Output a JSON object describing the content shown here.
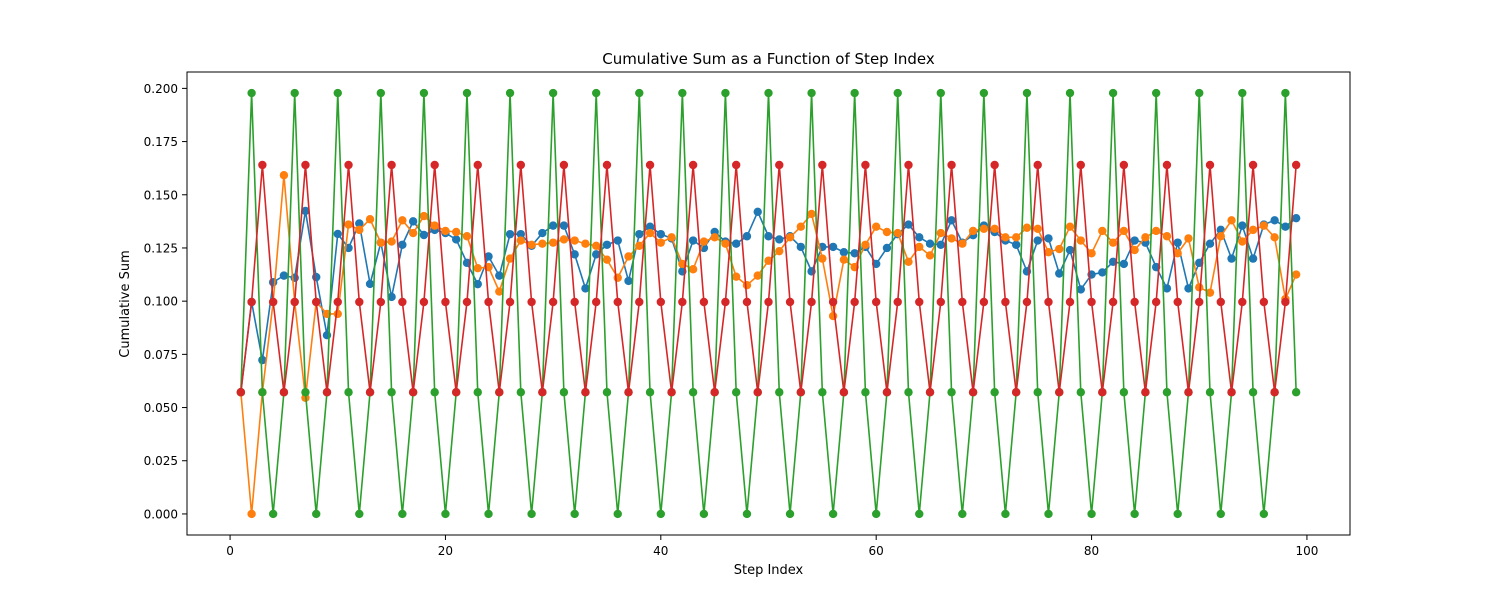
{
  "chart_data": {
    "type": "line",
    "title": "Cumulative Sum as a Function of Step Index",
    "xlabel": "Step Index",
    "ylabel": "Cumulative Sum",
    "xlim": [
      -4,
      104
    ],
    "ylim": [
      -0.0099,
      0.2077
    ],
    "xticks": [
      0,
      20,
      40,
      60,
      80,
      100
    ],
    "xtick_labels": [
      "0",
      "20",
      "40",
      "60",
      "80",
      "100"
    ],
    "yticks": [
      0.0,
      0.025,
      0.05,
      0.075,
      0.1,
      0.125,
      0.15,
      0.175,
      0.2
    ],
    "ytick_labels": [
      "0.000",
      "0.025",
      "0.050",
      "0.075",
      "0.100",
      "0.125",
      "0.150",
      "0.175",
      "0.200"
    ],
    "grid": false,
    "legend": "none",
    "markers": true,
    "x_start": 1,
    "x_end": 99,
    "series": [
      {
        "color": "#1f77b4",
        "values": [
          0.0572,
          0.0996,
          0.0723,
          0.1089,
          0.112,
          0.111,
          0.1424,
          0.1113,
          0.084,
          0.1316,
          0.125,
          0.1365,
          0.1081,
          0.1275,
          0.102,
          0.1265,
          0.1375,
          0.1311,
          0.1335,
          0.132,
          0.129,
          0.118,
          0.108,
          0.121,
          0.112,
          0.1315,
          0.1315,
          0.126,
          0.132,
          0.1355,
          0.1355,
          0.122,
          0.106,
          0.122,
          0.1265,
          0.1285,
          0.1095,
          0.1315,
          0.135,
          0.1315,
          0.1295,
          0.114,
          0.1285,
          0.125,
          0.1325,
          0.128,
          0.127,
          0.1305,
          0.142,
          0.1305,
          0.129,
          0.1305,
          0.1255,
          0.114,
          0.1255,
          0.1255,
          0.123,
          0.1225,
          0.1255,
          0.1175,
          0.125,
          0.1315,
          0.136,
          0.13,
          0.127,
          0.1265,
          0.138,
          0.1275,
          0.131,
          0.1355,
          0.1325,
          0.1285,
          0.1265,
          0.114,
          0.1285,
          0.1295,
          0.113,
          0.124,
          0.1055,
          0.1125,
          0.1135,
          0.1185,
          0.1175,
          0.1285,
          0.1275,
          0.116,
          0.106,
          0.1275,
          0.106,
          0.118,
          0.127,
          0.1335,
          0.12,
          0.1355,
          0.12,
          0.136,
          0.138,
          0.135,
          0.139
        ]
      },
      {
        "color": "#ff7f0e",
        "values": [
          0.0572,
          0.0,
          0.0572,
          0.0996,
          0.1592,
          0.0996,
          0.0546,
          0.0996,
          0.094,
          0.094,
          0.136,
          0.1335,
          0.1385,
          0.1275,
          0.128,
          0.138,
          0.132,
          0.14,
          0.1355,
          0.133,
          0.1325,
          0.1305,
          0.1155,
          0.116,
          0.1045,
          0.12,
          0.1285,
          0.1265,
          0.127,
          0.1275,
          0.129,
          0.1285,
          0.127,
          0.126,
          0.1195,
          0.111,
          0.121,
          0.126,
          0.132,
          0.1275,
          0.13,
          0.1175,
          0.115,
          0.128,
          0.13,
          0.127,
          0.1115,
          0.1075,
          0.112,
          0.119,
          0.1235,
          0.13,
          0.135,
          0.141,
          0.12,
          0.093,
          0.1195,
          0.116,
          0.1265,
          0.135,
          0.1325,
          0.132,
          0.1185,
          0.1255,
          0.1215,
          0.132,
          0.1295,
          0.127,
          0.133,
          0.134,
          0.134,
          0.13,
          0.13,
          0.1345,
          0.134,
          0.123,
          0.1245,
          0.135,
          0.1285,
          0.1225,
          0.133,
          0.1275,
          0.133,
          0.124,
          0.13,
          0.133,
          0.1305,
          0.1225,
          0.1295,
          0.1065,
          0.104,
          0.1305,
          0.138,
          0.128,
          0.1335,
          0.1355,
          0.13,
          0.101,
          0.1125
        ]
      },
      {
        "color": "#2ca02c",
        "values": [
          0.0572,
          0.1978,
          0.0572,
          0.0,
          0.0572,
          0.1978,
          0.0572,
          0.0,
          0.0572,
          0.1978,
          0.0572,
          0.0,
          0.0572,
          0.1978,
          0.0572,
          0.0,
          0.0572,
          0.1978,
          0.0572,
          0.0,
          0.0572,
          0.1978,
          0.0572,
          0.0,
          0.0572,
          0.1978,
          0.0572,
          0.0,
          0.0572,
          0.1978,
          0.0572,
          0.0,
          0.0572,
          0.1978,
          0.0572,
          0.0,
          0.0572,
          0.1978,
          0.0572,
          0.0,
          0.0572,
          0.1978,
          0.0572,
          0.0,
          0.0572,
          0.1978,
          0.0572,
          0.0,
          0.0572,
          0.1978,
          0.0572,
          0.0,
          0.0572,
          0.1978,
          0.0572,
          0.0,
          0.0572,
          0.1978,
          0.0572,
          0.0,
          0.0572,
          0.1978,
          0.0572,
          0.0,
          0.0572,
          0.1978,
          0.0572,
          0.0,
          0.0572,
          0.1978,
          0.0572,
          0.0,
          0.0572,
          0.1978,
          0.0572,
          0.0,
          0.0572,
          0.1978,
          0.0572,
          0.0,
          0.0572,
          0.1978,
          0.0572,
          0.0,
          0.0572,
          0.1978,
          0.0572,
          0.0,
          0.0572,
          0.1978,
          0.0572,
          0.0,
          0.0572,
          0.1978,
          0.0572,
          0.0,
          0.0572,
          0.1978,
          0.0572
        ]
      },
      {
        "color": "#d62728",
        "values": [
          0.0572,
          0.0996,
          0.164,
          0.0996,
          0.0572,
          0.0996,
          0.164,
          0.0996,
          0.0572,
          0.0996,
          0.164,
          0.0996,
          0.0572,
          0.0996,
          0.164,
          0.0996,
          0.0572,
          0.0996,
          0.164,
          0.0996,
          0.0572,
          0.0996,
          0.164,
          0.0996,
          0.0572,
          0.0996,
          0.164,
          0.0996,
          0.0572,
          0.0996,
          0.164,
          0.0996,
          0.0572,
          0.0996,
          0.164,
          0.0996,
          0.0572,
          0.0996,
          0.164,
          0.0996,
          0.0572,
          0.0996,
          0.164,
          0.0996,
          0.0572,
          0.0996,
          0.164,
          0.0996,
          0.0572,
          0.0996,
          0.164,
          0.0996,
          0.0572,
          0.0996,
          0.164,
          0.0996,
          0.0572,
          0.0996,
          0.164,
          0.0996,
          0.0572,
          0.0996,
          0.164,
          0.0996,
          0.0572,
          0.0996,
          0.164,
          0.0996,
          0.0572,
          0.0996,
          0.164,
          0.0996,
          0.0572,
          0.0996,
          0.164,
          0.0996,
          0.0572,
          0.0996,
          0.164,
          0.0996,
          0.0572,
          0.0996,
          0.164,
          0.0996,
          0.0572,
          0.0996,
          0.164,
          0.0996,
          0.0572,
          0.0996,
          0.164,
          0.0996,
          0.0572,
          0.0996,
          0.164,
          0.0996,
          0.0572,
          0.0996,
          0.164
        ]
      }
    ]
  }
}
